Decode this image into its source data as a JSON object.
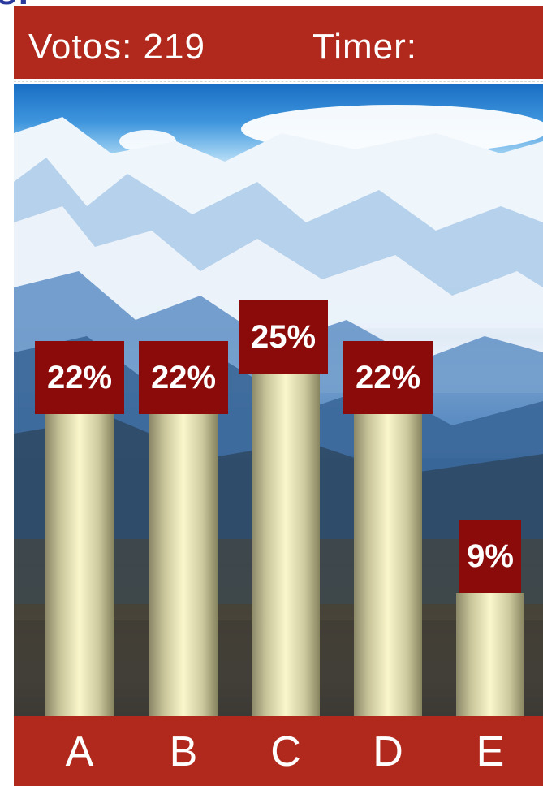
{
  "header": {
    "cut_title": "s:",
    "votes_text": "Votos: 219",
    "timer_text": "Timer:"
  },
  "colors": {
    "bar_fill": "#fbf7cc",
    "label_box": "#8b0a0a",
    "band": "#b1291c",
    "title_text": "#2a3a9c"
  },
  "chart_data": {
    "type": "bar",
    "categories": [
      "A",
      "B",
      "C",
      "D",
      "E"
    ],
    "values": [
      22,
      22,
      25,
      22,
      9
    ],
    "data_labels": [
      "22%",
      "22%",
      "25%",
      "22%",
      "9%"
    ],
    "ylim": [
      0,
      25
    ],
    "grid": false,
    "legend": "none"
  }
}
